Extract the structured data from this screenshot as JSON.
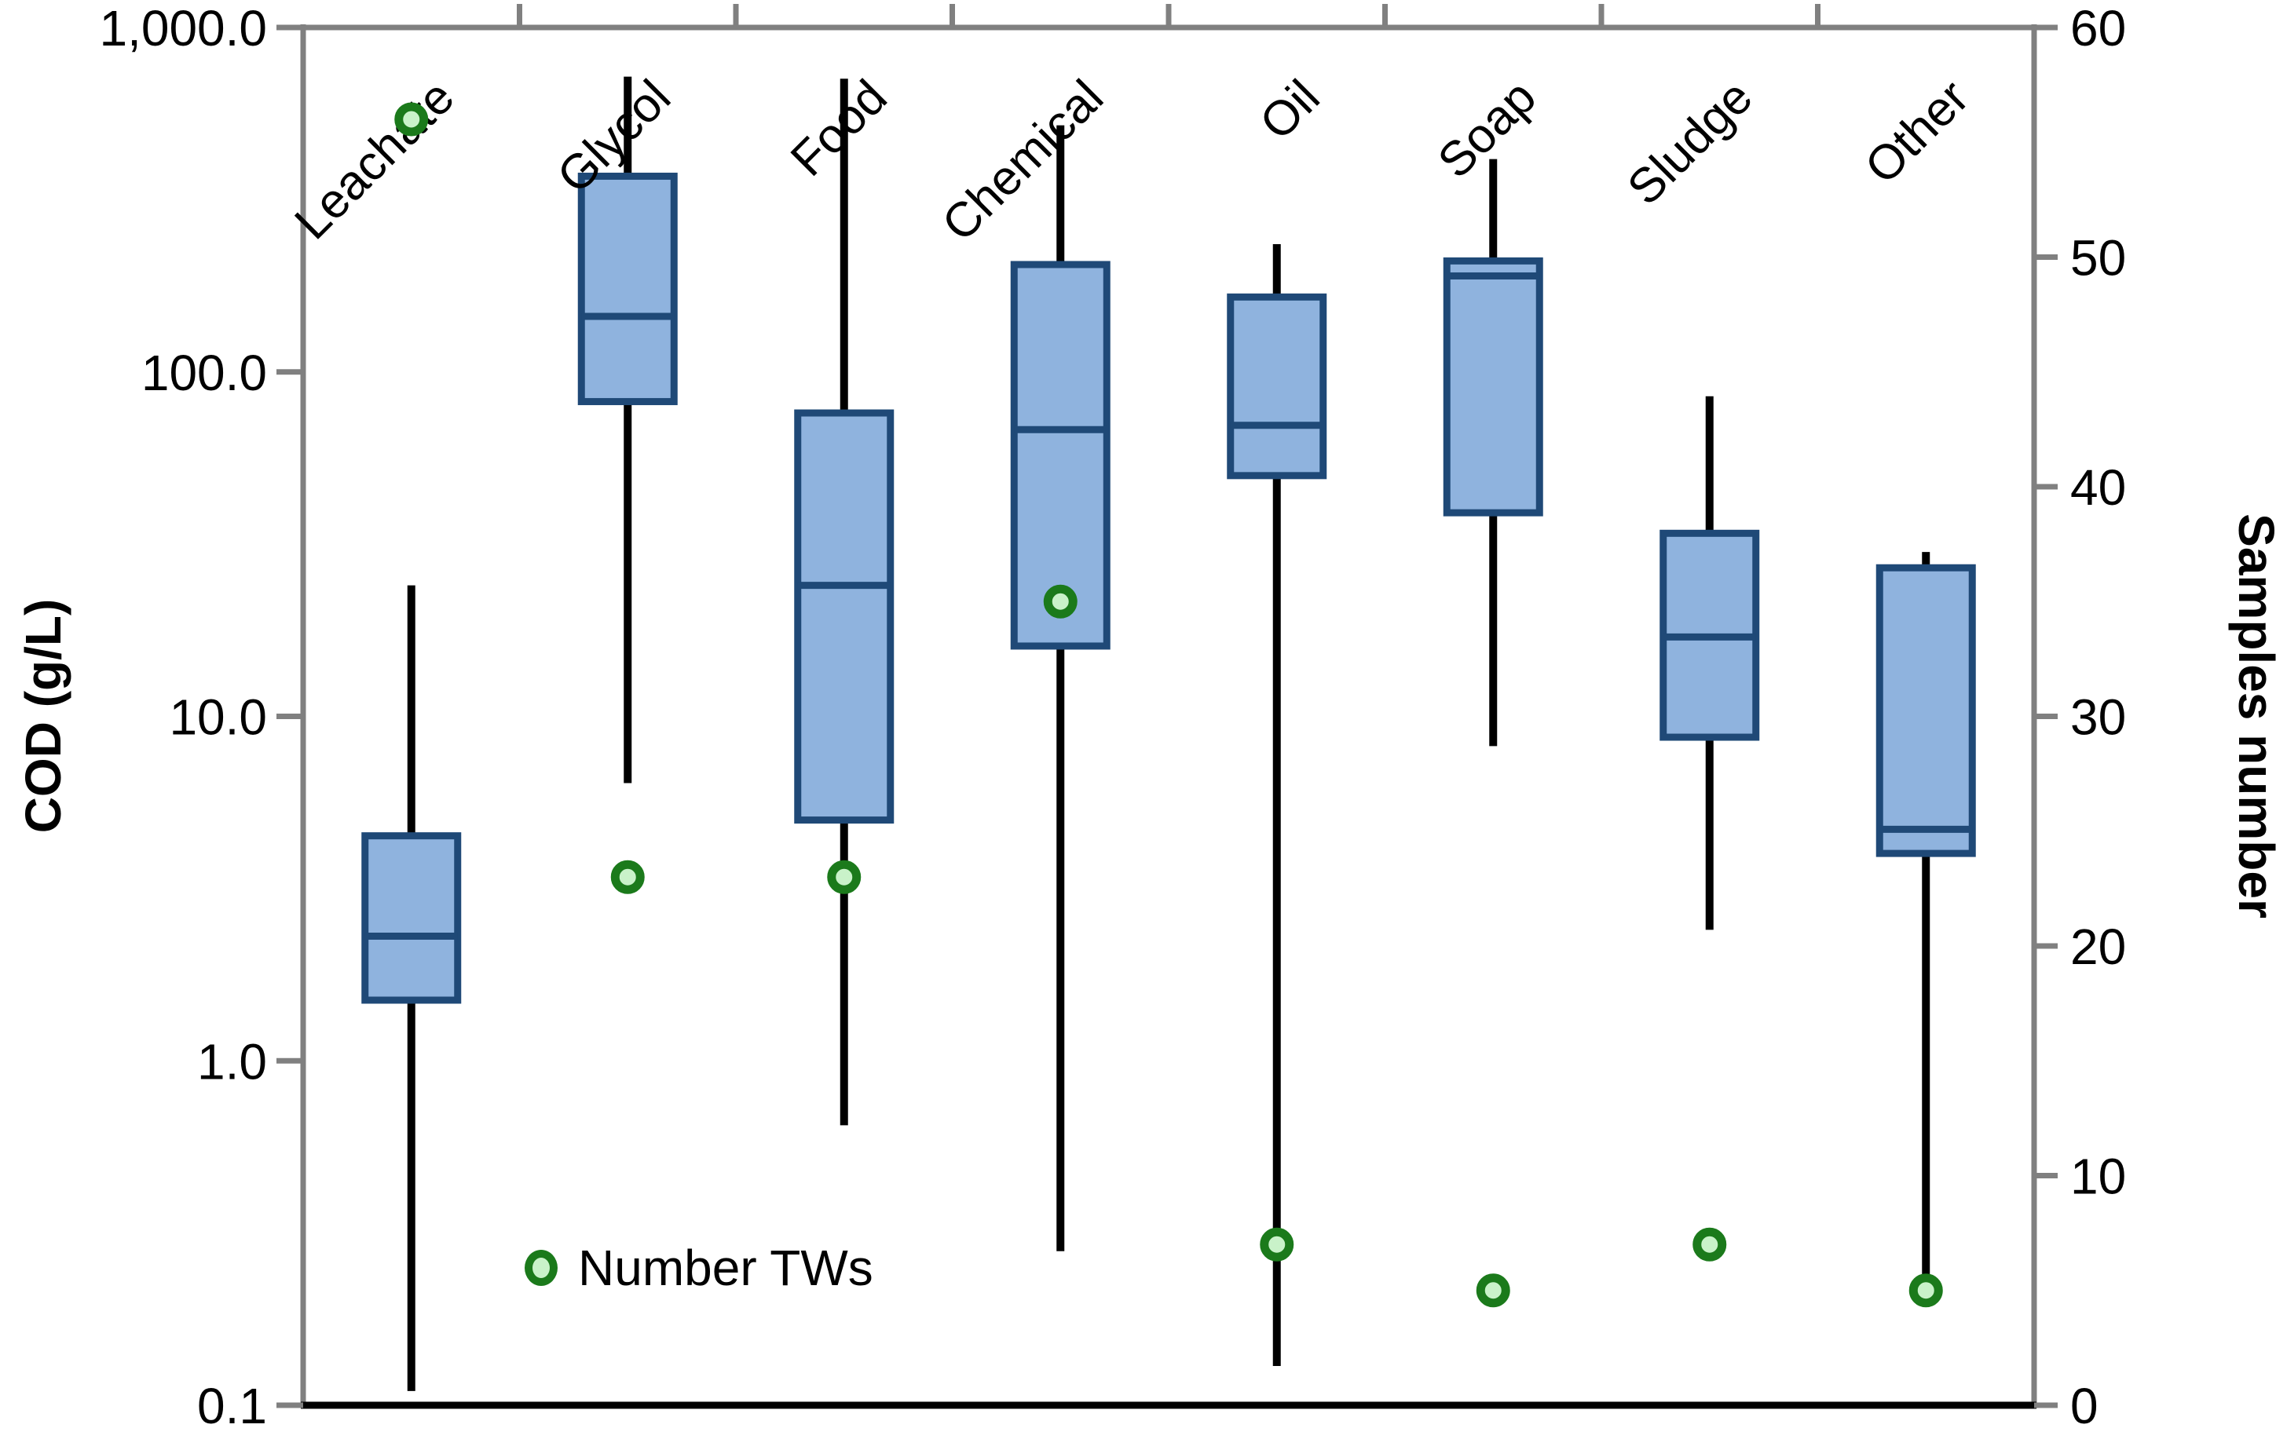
{
  "chart_data": {
    "type": "boxplot",
    "title": "",
    "categories": [
      "Leachate",
      "Glycol",
      "Food",
      "Chemical",
      "Oil",
      "Soap",
      "Sludge",
      "Other"
    ],
    "boxes": [
      {
        "category": "Leachate",
        "whisker_low": 0.11,
        "q1": 1.5,
        "median": 2.3,
        "q3": 4.5,
        "whisker_high": 24
      },
      {
        "category": "Glycol",
        "whisker_low": 6.4,
        "q1": 82,
        "median": 145,
        "q3": 370,
        "whisker_high": 720
      },
      {
        "category": "Food",
        "whisker_low": 0.65,
        "q1": 5.0,
        "median": 24,
        "q3": 76,
        "whisker_high": 710
      },
      {
        "category": "Chemical",
        "whisker_low": 0.28,
        "q1": 16,
        "median": 68,
        "q3": 205,
        "whisker_high": 520
      },
      {
        "category": "Oil",
        "whisker_low": 0.13,
        "q1": 50,
        "median": 70,
        "q3": 165,
        "whisker_high": 235
      },
      {
        "category": "Soap",
        "whisker_low": 8.2,
        "q1": 39,
        "median": 190,
        "q3": 210,
        "whisker_high": 415
      },
      {
        "category": "Sludge",
        "whisker_low": 2.4,
        "q1": 8.7,
        "median": 17,
        "q3": 34,
        "whisker_high": 85
      },
      {
        "category": "Other",
        "whisker_low": 0.22,
        "q1": 4.0,
        "median": 4.7,
        "q3": 27,
        "whisker_high": 30
      }
    ],
    "tws_series": {
      "name": "Number TWs",
      "values": [
        56,
        23,
        23,
        35,
        7,
        5,
        7,
        5
      ]
    },
    "left_axis": {
      "title": "COD (g/L)",
      "scale": "log",
      "min": 0.1,
      "max": 1000,
      "ticks": [
        {
          "value": 0.1,
          "label": "0.1"
        },
        {
          "value": 1,
          "label": "1.0"
        },
        {
          "value": 10,
          "label": "10.0"
        },
        {
          "value": 100,
          "label": "100.0"
        },
        {
          "value": 1000,
          "label": "1,000.0"
        }
      ]
    },
    "right_axis": {
      "title": "Samples number",
      "min": 0,
      "max": 60,
      "tick_step": 10,
      "tick_labels": [
        "0",
        "10",
        "20",
        "30",
        "40",
        "50",
        "60"
      ]
    },
    "legend": {
      "label": "Number TWs",
      "position": "inside-bottom-left"
    },
    "grid": "off",
    "colors": {
      "box_fill": "#8FB3DE",
      "box_border": "#1F4977",
      "median": "#1F4977",
      "whisker": "#000000",
      "marker_ring": "#1B7A1B",
      "marker_fill": "#C9F2C9",
      "frame": "#808080",
      "bottom_axis": "#000000",
      "text": "#000000"
    }
  }
}
